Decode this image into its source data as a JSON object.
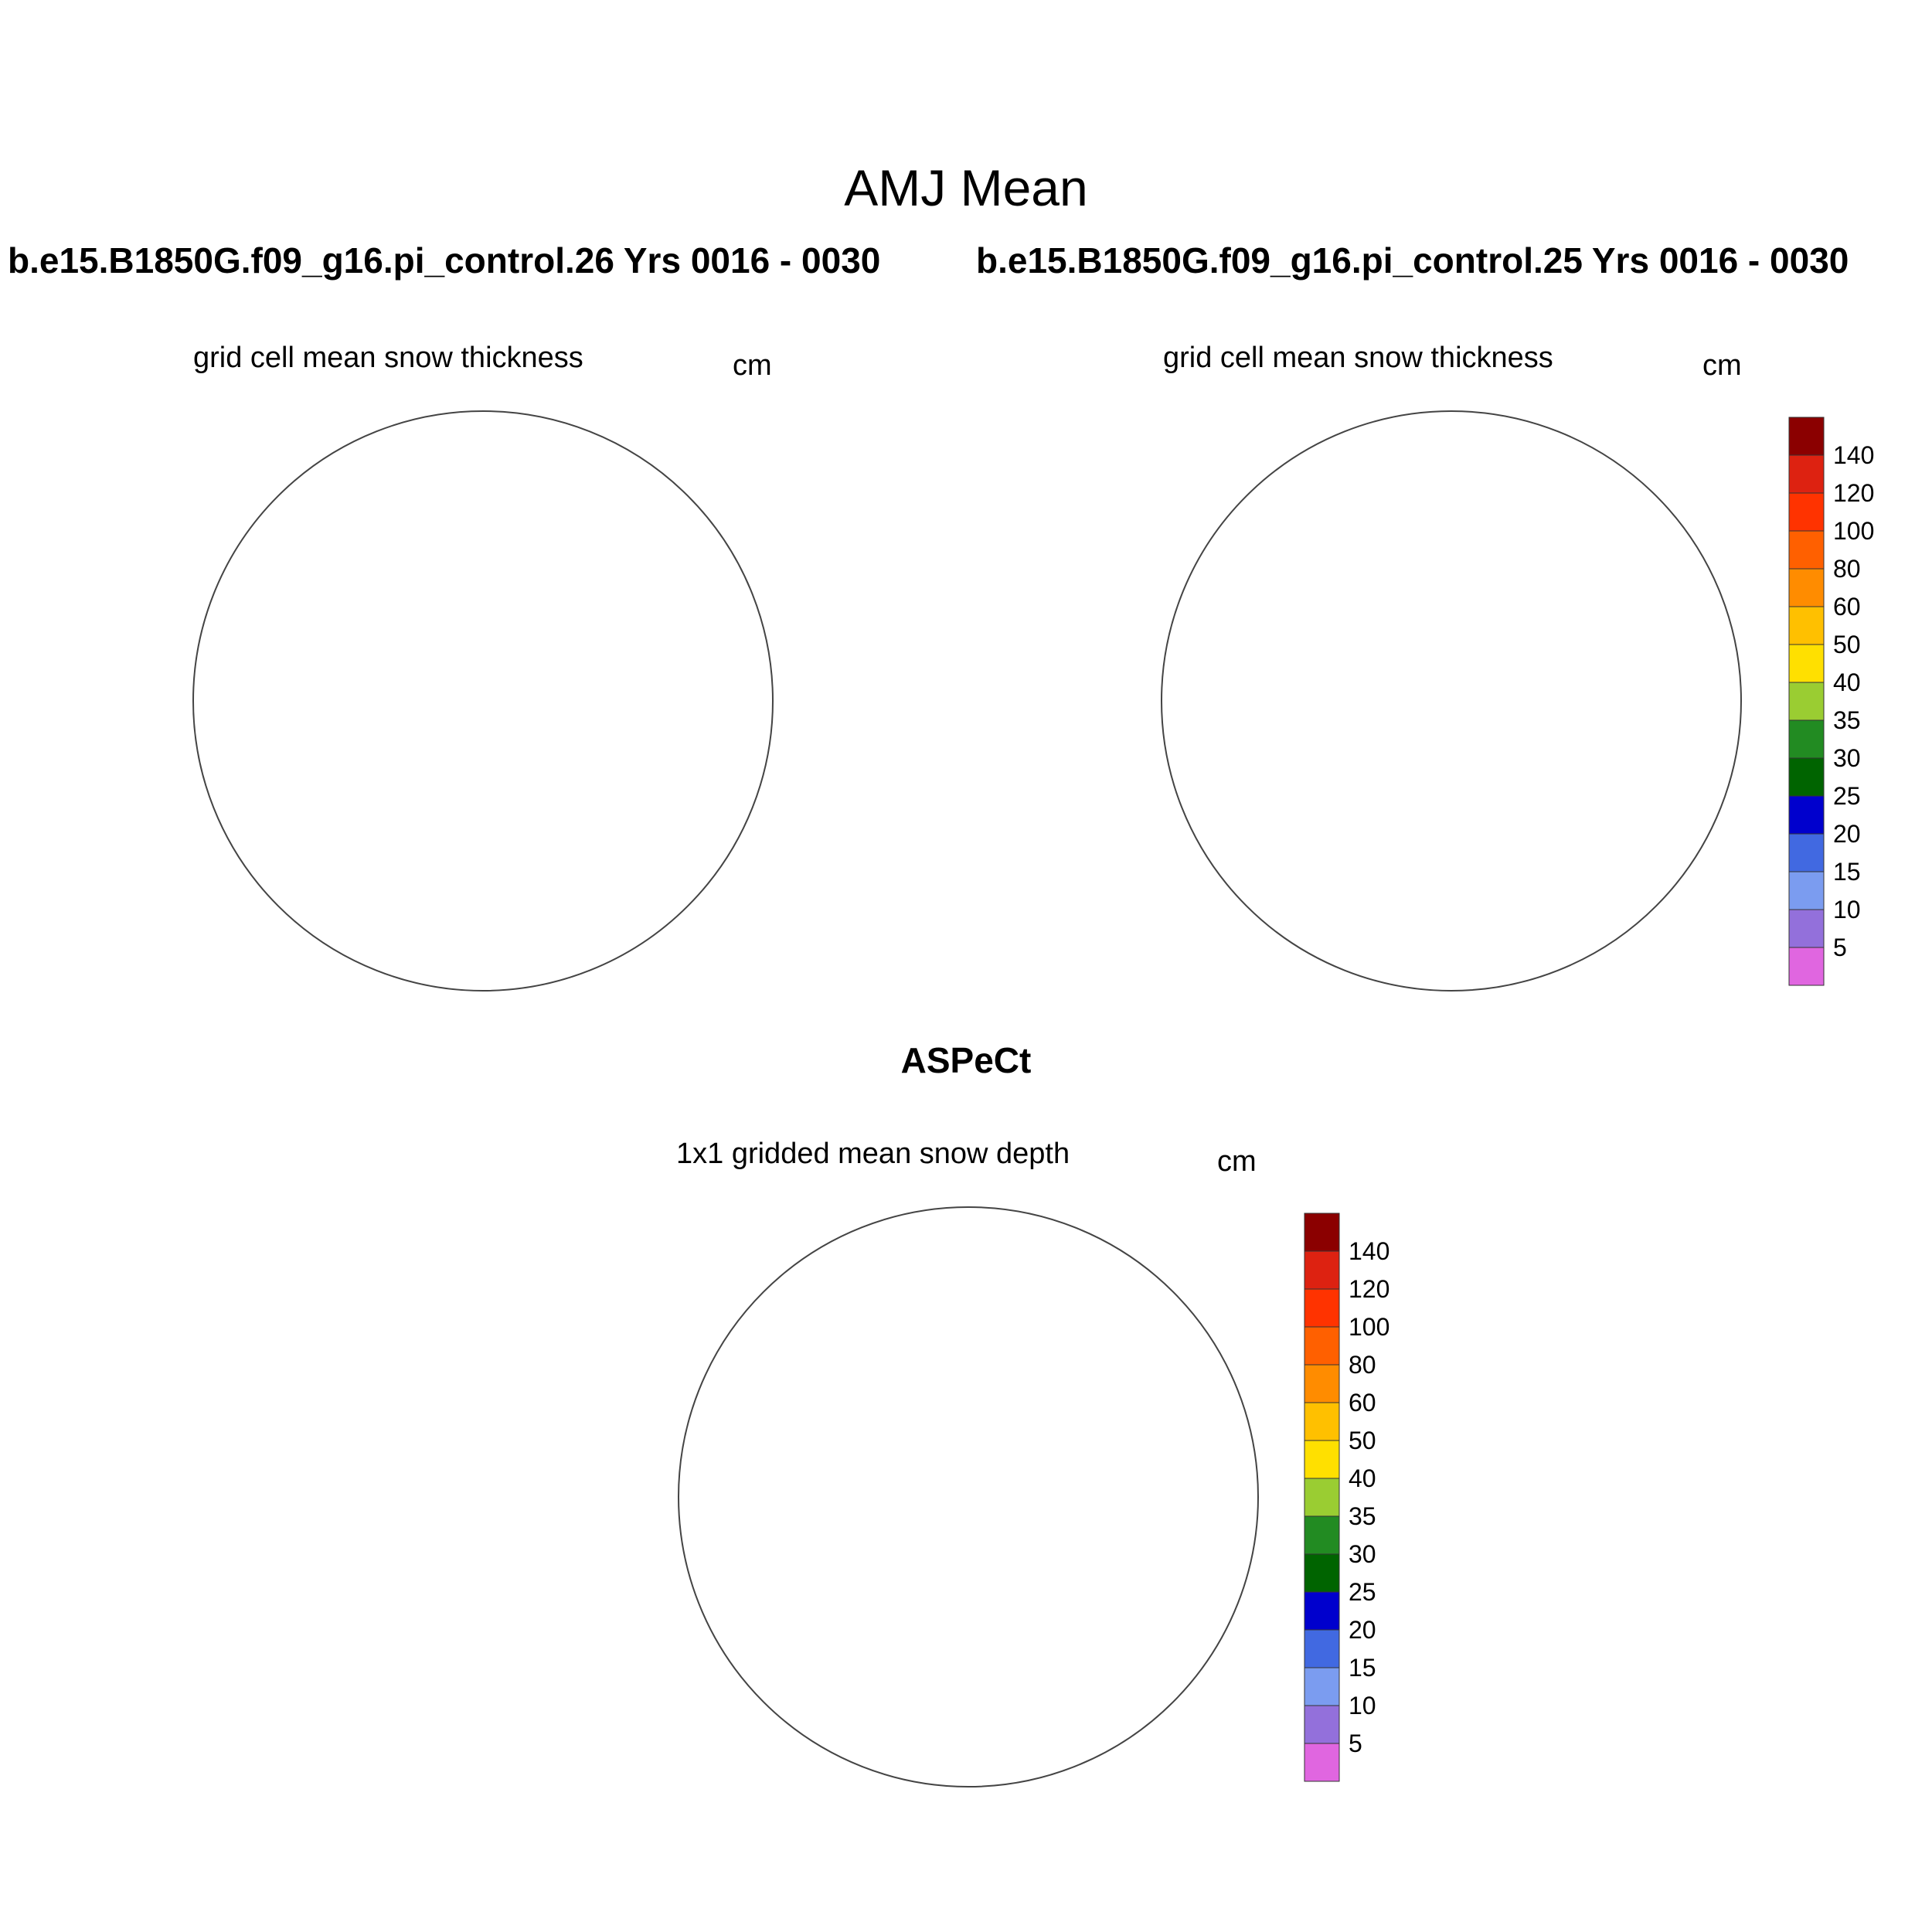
{
  "figure": {
    "title": "AMJ Mean",
    "case_left": "b.e15.B1850G.f09_g16.pi_control.26  Yrs 0016 - 0030",
    "case_right": "b.e15.B1850G.f09_g16.pi_control.25  Yrs 0016 - 0030",
    "obs_title": "ASPeCt"
  },
  "panels": [
    {
      "subtitle": "grid cell mean snow thickness",
      "units": "cm"
    },
    {
      "subtitle": "grid cell mean snow thickness",
      "units": "cm"
    },
    {
      "subtitle": "1x1 gridded mean snow depth",
      "units": "cm"
    }
  ],
  "chart_data": {
    "type": "heatmap",
    "projection": "south-polar-stereographic",
    "colorbar": {
      "labels": [
        "5",
        "10",
        "15",
        "20",
        "25",
        "30",
        "35",
        "40",
        "50",
        "60",
        "80",
        "100",
        "120",
        "140"
      ],
      "colors": [
        "#e066e0",
        "#9370db",
        "#7b9cf0",
        "#4169e1",
        "#0000cd",
        "#006400",
        "#228b22",
        "#9acd32",
        "#ffe000",
        "#ffc000",
        "#ff8c00",
        "#ff6000",
        "#ff3300",
        "#dd2211",
        "#8b0000"
      ]
    },
    "land_color": "#bebebe"
  }
}
